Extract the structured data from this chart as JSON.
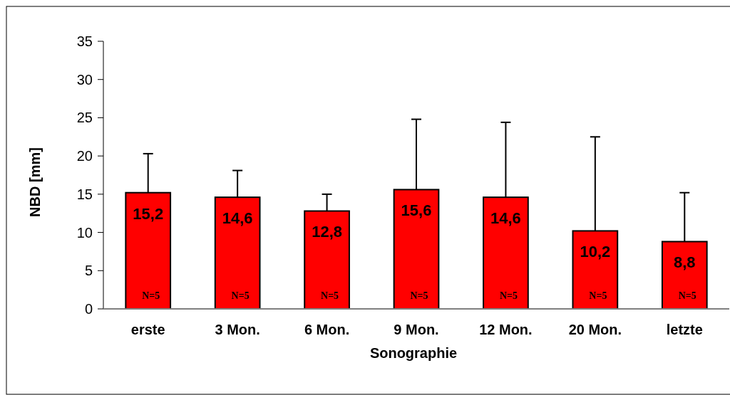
{
  "chart_data": {
    "type": "bar",
    "xlabel": "Sonographie",
    "ylabel": "NBD [mm]",
    "categories": [
      "erste",
      "3 Mon.",
      "6 Mon.",
      "9 Mon.",
      "12 Mon.",
      "20 Mon.",
      "letzte"
    ],
    "series": [
      {
        "color": "#ff0000",
        "values": [
          15.2,
          14.6,
          12.8,
          15.6,
          14.6,
          10.2,
          8.8
        ],
        "value_labels": [
          "15,2",
          "14,6",
          "12,8",
          "15,6",
          "14,6",
          "10,2",
          "8,8"
        ],
        "errors": [
          [
            15.2,
            20.3
          ],
          [
            14.6,
            18.1
          ],
          [
            12.8,
            15.0
          ],
          [
            15.6,
            24.8
          ],
          [
            14.6,
            24.4
          ],
          [
            10.2,
            22.5
          ],
          [
            8.8,
            15.2
          ]
        ]
      }
    ],
    "ylim": [
      0,
      35
    ],
    "yticks": [
      0,
      5,
      10,
      15,
      20,
      25,
      30,
      35
    ],
    "grid": false,
    "annotations": [
      "N=5",
      "N=5",
      "N=5",
      "N=5",
      "N=5",
      "N=5",
      "N=5"
    ]
  }
}
